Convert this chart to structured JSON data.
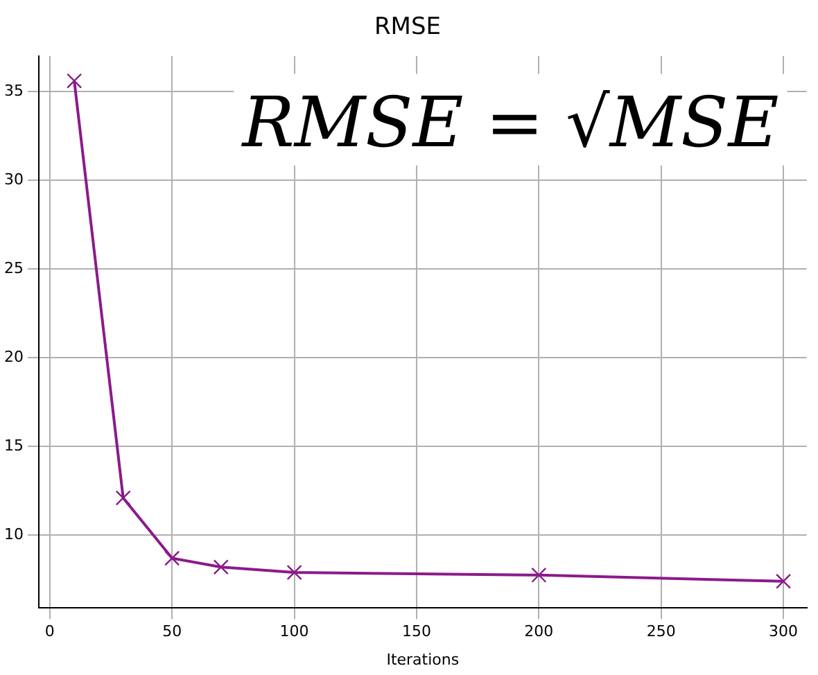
{
  "chart_data": {
    "type": "line",
    "title": "RMSE",
    "xlabel": "Iterations",
    "x": [
      10,
      30,
      50,
      70,
      100,
      200,
      300
    ],
    "series": [
      {
        "color": "#8b1a8b",
        "values": [
          35.6,
          12.1,
          8.7,
          8.2,
          7.9,
          7.75,
          7.4
        ]
      }
    ],
    "xlim": [
      -4.5,
      309.5
    ],
    "xticks": [
      0,
      50,
      100,
      150,
      200,
      250,
      300
    ],
    "ylim": [
      5.9,
      37
    ],
    "yticks": [
      10,
      15,
      20,
      25,
      30,
      35
    ],
    "grid": true,
    "legend": false,
    "marker": "cross",
    "line_style": "solid",
    "annotations": [
      "RMSE = √MSE"
    ]
  }
}
